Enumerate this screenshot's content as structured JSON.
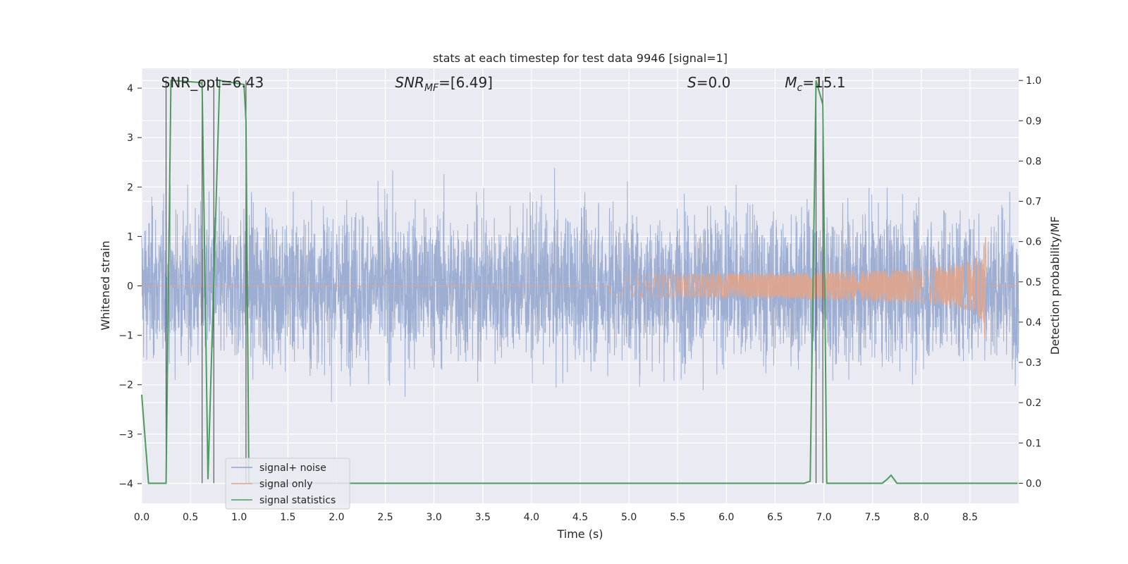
{
  "chart_data": {
    "type": "line",
    "title": "stats at each timestep for test data 9946 [signal=1]",
    "xlabel": "Time (s)",
    "ylabel_left": "Whitened strain",
    "ylabel_right": "Detection probability/MF",
    "xlim": [
      0.0,
      9.0
    ],
    "ylim_left": [
      -4.4,
      4.4
    ],
    "ylim_right": [
      -0.05,
      1.03
    ],
    "grid": true,
    "legend_position": "lower-left",
    "x_ticks": [
      "0.0",
      "0.5",
      "1.0",
      "1.5",
      "2.0",
      "2.5",
      "3.0",
      "3.5",
      "4.0",
      "4.5",
      "5.0",
      "5.5",
      "6.0",
      "6.5",
      "7.0",
      "7.5",
      "8.0",
      "8.5"
    ],
    "y_ticks_left": [
      "4",
      "3",
      "2",
      "1",
      "0",
      "−1",
      "−2",
      "−3",
      "−4"
    ],
    "y_ticks_right": [
      "1.0",
      "0.9",
      "0.8",
      "0.7",
      "0.6",
      "0.5",
      "0.4",
      "0.3",
      "0.2",
      "0.1",
      "0.0"
    ],
    "annotations": [
      {
        "text": "SNR_opt=6.43",
        "x": 0.2
      },
      {
        "text": "SNR",
        "sub": "MF",
        "tail": "=[6.49]",
        "x": 2.6
      },
      {
        "text": "S",
        "tail": "=0.0",
        "x": 5.6
      },
      {
        "text": "M",
        "sub": "c",
        "tail": "=15.1",
        "x": 6.6
      }
    ],
    "series": [
      {
        "name": "signal+ noise",
        "color": "#8fa3cc",
        "axis": "left",
        "description": "whitened noisy strain, amplitude about ±2, sample rate ~2048 Hz"
      },
      {
        "name": "signal only",
        "color": "#e0a58c",
        "axis": "left",
        "chirp_start": 4.8,
        "chirp_end": 8.66,
        "peak_amplitude": 1.35
      },
      {
        "name": "signal statistics",
        "color": "#4c9c5e",
        "axis": "right",
        "x": [
          0.0,
          0.07,
          0.25,
          0.3,
          0.6,
          0.62,
          0.68,
          0.8,
          1.05,
          1.07,
          1.1,
          1.12,
          6.8,
          6.86,
          6.92,
          6.99,
          7.03,
          7.6,
          7.65,
          7.69,
          7.75,
          8.99
        ],
        "values": [
          0.22,
          0.0,
          0.0,
          1.0,
          0.995,
          0.99,
          0.01,
          1.0,
          0.99,
          0.9,
          0.0,
          0.0,
          0.0,
          0.005,
          1.0,
          0.94,
          0.0,
          0.0,
          0.01,
          0.02,
          0.0,
          0.0
        ]
      }
    ],
    "vertical_markers": [
      0.25,
      0.62,
      0.74,
      1.07,
      6.92,
      6.99
    ]
  }
}
